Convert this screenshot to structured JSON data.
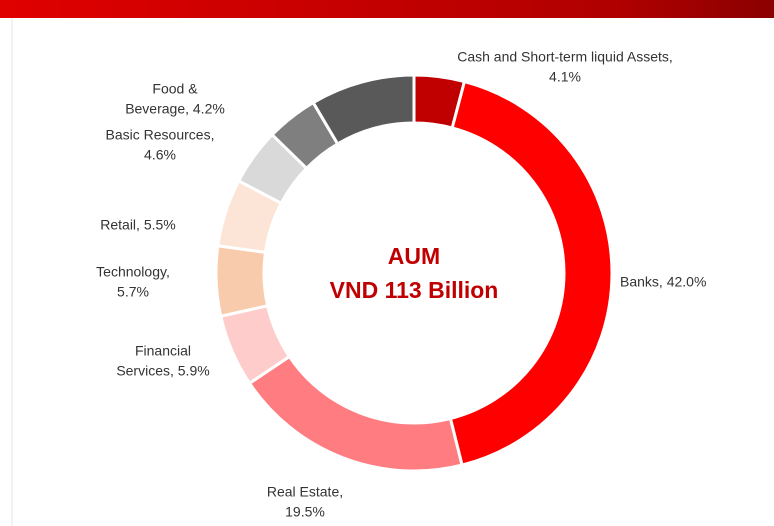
{
  "chart_data": {
    "type": "donut",
    "title": [
      "AUM",
      "VND 113 Billion"
    ],
    "categories": [
      "Cash and Short-term liquid Assets",
      "Banks",
      "Real Estate",
      "Financial Services",
      "Technology",
      "Retail",
      "Basic Resources",
      "Food & Beverage",
      null
    ],
    "values": [
      4.1,
      42.0,
      19.5,
      5.9,
      5.7,
      5.5,
      4.6,
      4.2,
      8.5
    ],
    "value_labels": [
      [
        "Cash and Short-term liquid Assets,",
        "4.1%"
      ],
      [
        "Banks, 42.0%"
      ],
      [
        "Real Estate,",
        "19.5%"
      ],
      [
        "Financial",
        "Services, 5.9%"
      ],
      [
        "Technology,",
        "5.7%"
      ],
      [
        "Retail, 5.5%"
      ],
      [
        "Basic Resources,",
        "4.6%"
      ],
      [
        "Food &",
        "Beverage, 4.2%"
      ],
      null
    ],
    "colors": [
      "#c00000",
      "#ff0000",
      "#ff7c80",
      "#ffcccc",
      "#f8cbad",
      "#fce4d6",
      "#d9d9d9",
      "#7f7f7f",
      "#595959"
    ]
  }
}
